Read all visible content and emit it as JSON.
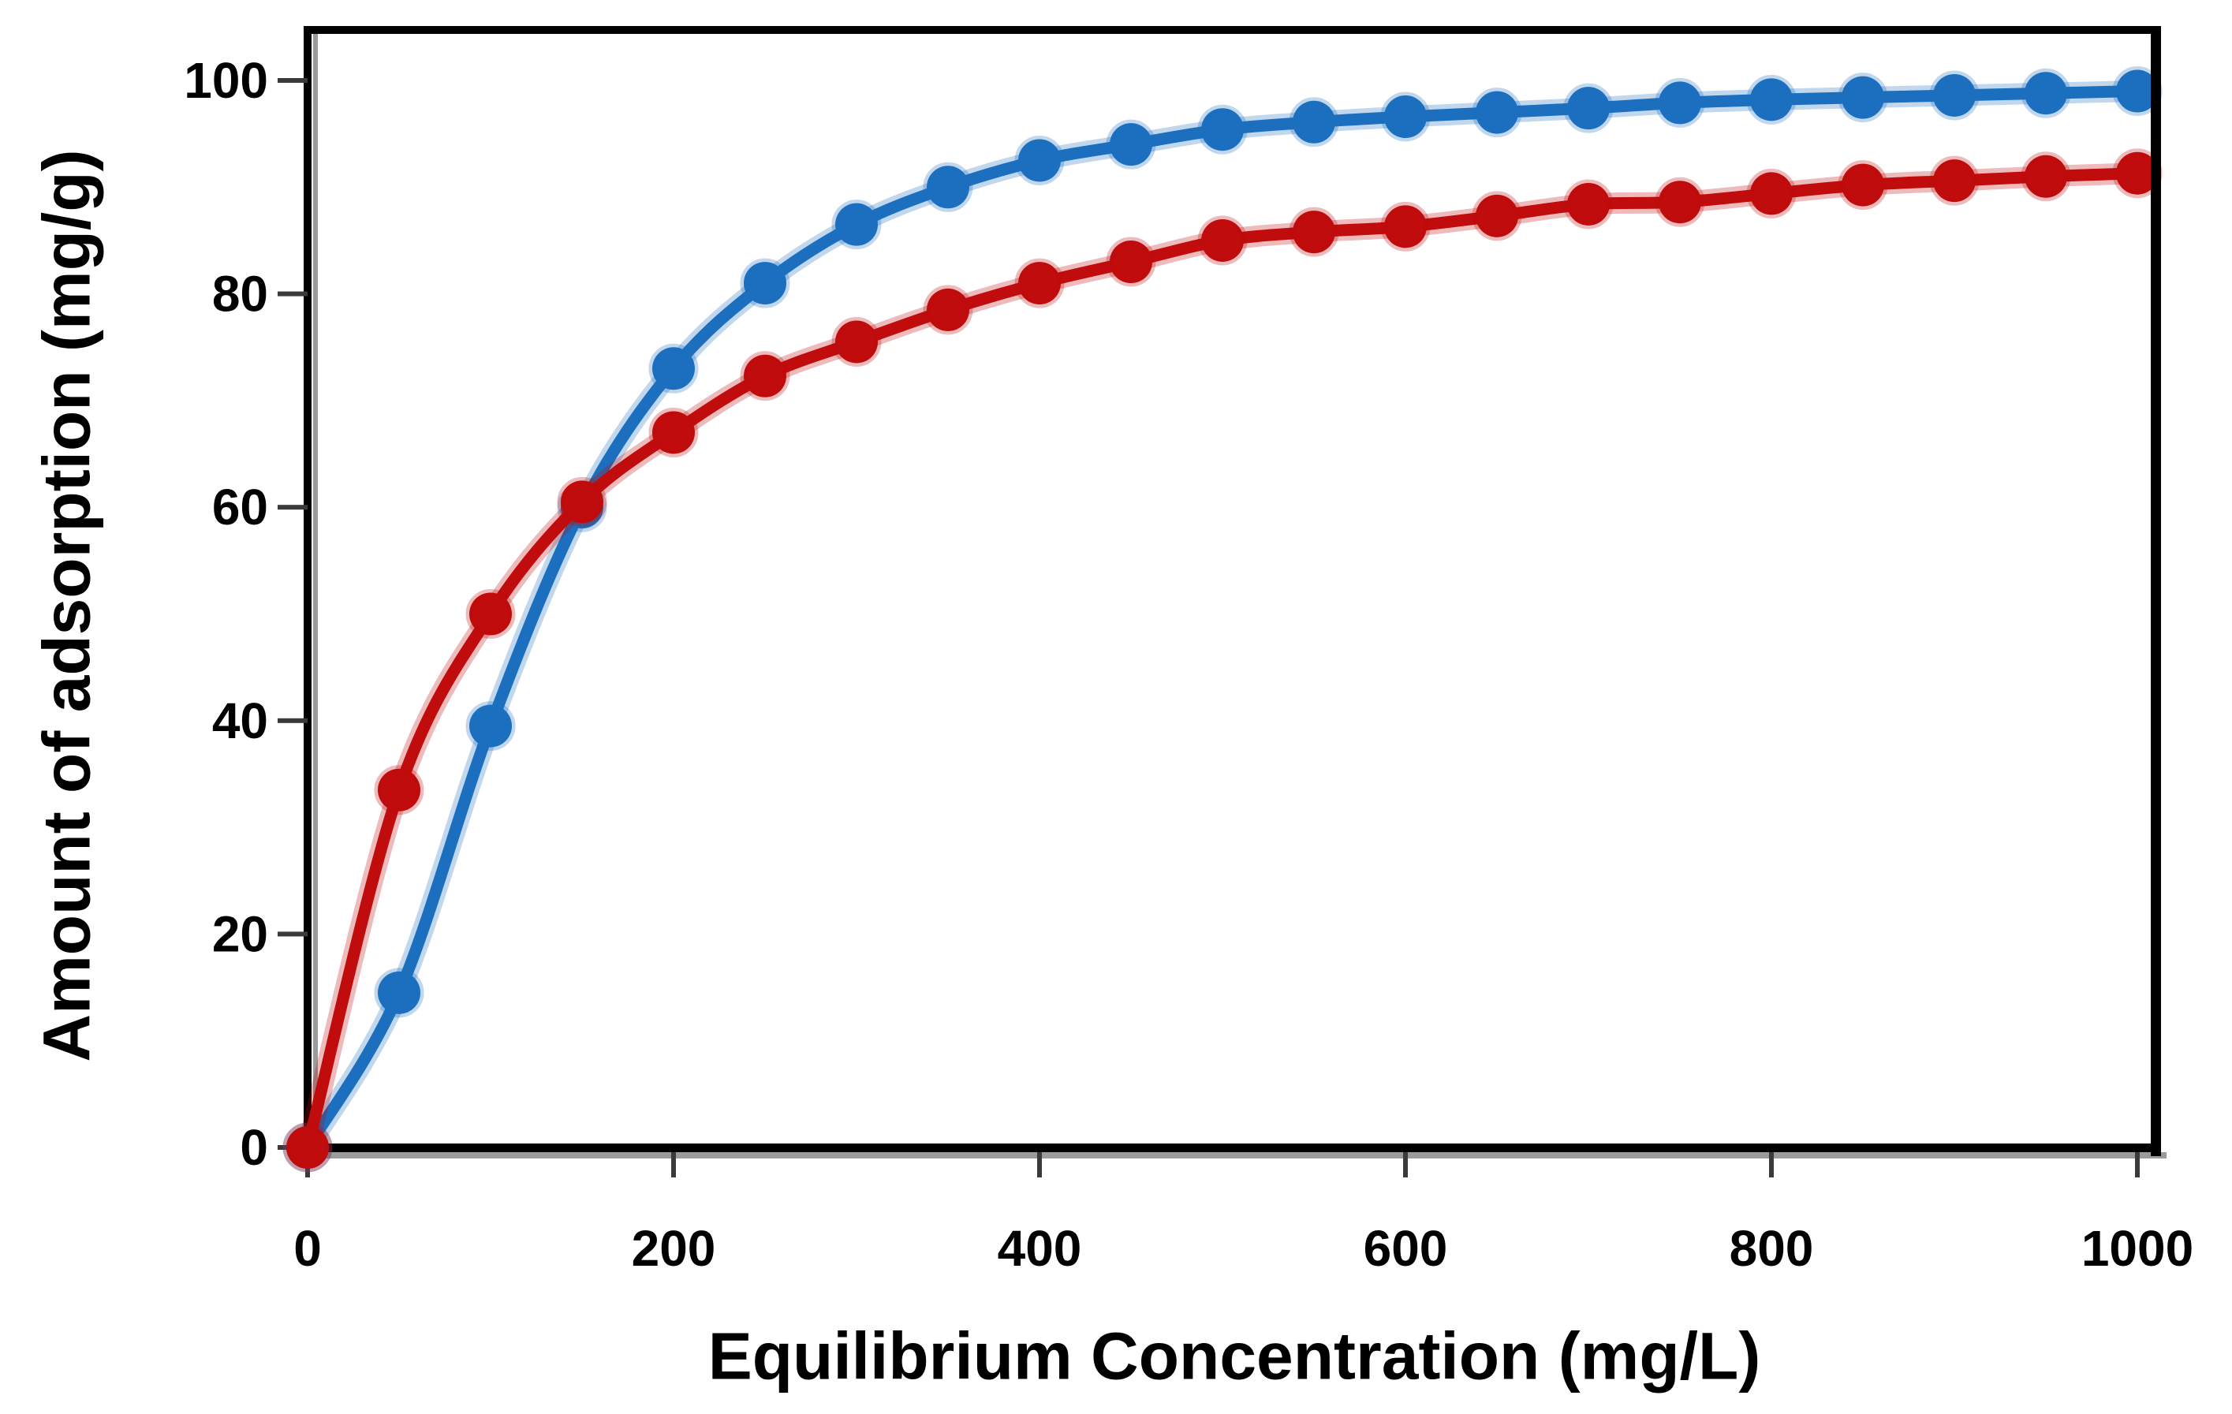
{
  "page": {
    "background": "#ffffff"
  },
  "chart_data": {
    "type": "line",
    "title": "",
    "xlabel": "Equilibrium Concentration (mg/L)",
    "ylabel": "Amount of adsorption (mg/g)",
    "x_tick_values": [
      0,
      200,
      400,
      600,
      800,
      1000
    ],
    "x_tick_labels": [
      "0",
      "200",
      "400",
      "600",
      "800",
      "1000"
    ],
    "y_tick_values": [
      0,
      20,
      40,
      60,
      80,
      100
    ],
    "y_tick_labels": [
      "0",
      "20",
      "40",
      "60",
      "80",
      "100"
    ],
    "xlim": [
      0,
      1010
    ],
    "ylim": [
      0,
      105
    ],
    "grid": false,
    "legend_position": "none",
    "marker_shape": "circle",
    "axis_color": "#000000",
    "tick_color": "#3a3a3a",
    "shadow_color": "#9b9b9b",
    "x": [
      0,
      50,
      100,
      150,
      200,
      250,
      300,
      350,
      400,
      450,
      500,
      550,
      600,
      650,
      700,
      750,
      800,
      850,
      900,
      950,
      1000
    ],
    "series": [
      {
        "name": "blue-series",
        "color": "#1B6FBE",
        "halo_color": "rgba(27,111,190,0.28)",
        "values": [
          0,
          14.5,
          39.5,
          60,
          73,
          81,
          86.5,
          90,
          92.5,
          94,
          95.4,
          96.1,
          96.6,
          97,
          97.4,
          97.9,
          98.2,
          98.4,
          98.6,
          98.8,
          99
        ]
      },
      {
        "name": "red-series",
        "color": "#C00C0C",
        "halo_color": "rgba(192,12,12,0.28)",
        "values": [
          0,
          33.5,
          50,
          60.5,
          67,
          72.3,
          75.5,
          78.5,
          81,
          83,
          85,
          85.8,
          86.3,
          87.3,
          88.4,
          88.6,
          89.4,
          90.2,
          90.6,
          91,
          91.3
        ]
      }
    ]
  }
}
